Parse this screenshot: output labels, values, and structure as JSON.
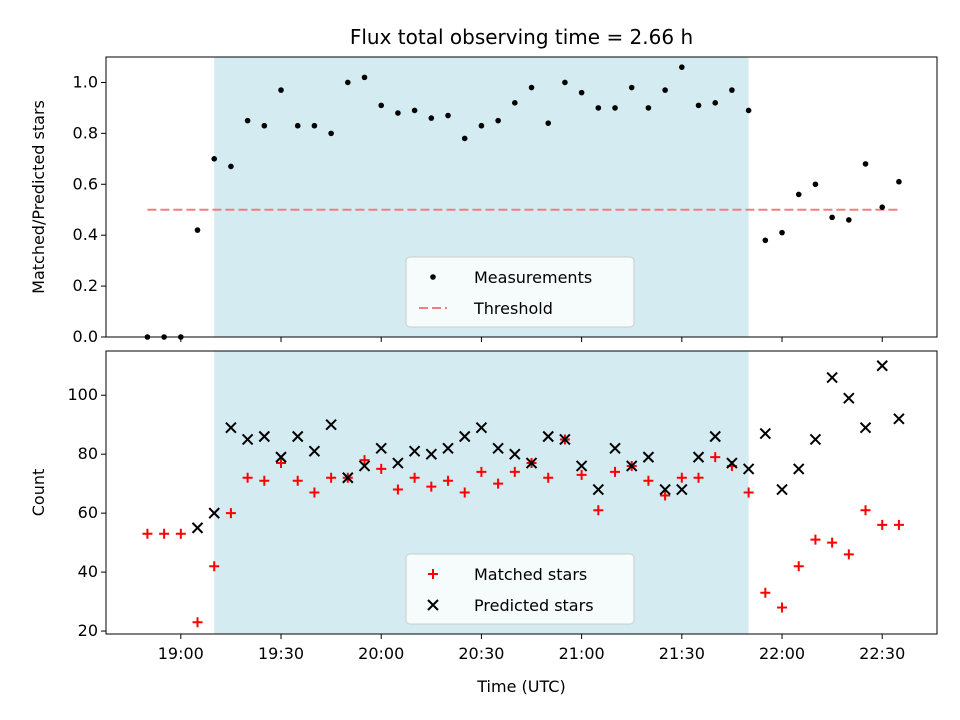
{
  "colors": {
    "shade": "#d3ebf1",
    "measurement": "#000000",
    "threshold": "#f08080",
    "matched": "#ff0000",
    "predicted": "#000000"
  },
  "chart_data": [
    {
      "type": "scatter",
      "title": "Flux total observing time = 2.66 h",
      "xlabel": "",
      "ylabel": "Matched/Predicted stars",
      "ylim": [
        0,
        1.1
      ],
      "yticks": [
        "0.0",
        "0.2",
        "0.4",
        "0.6",
        "0.8",
        "1.0"
      ],
      "x_unit": "minutes since 00:00 UTC",
      "shaded_region": [
        "19:10",
        "21:50"
      ],
      "legend": {
        "placement": "lower-center",
        "entries": [
          "Measurements",
          "Threshold"
        ]
      },
      "threshold": {
        "name": "Threshold",
        "value": 0.5,
        "x_range": [
          "18:50",
          "22:35"
        ]
      },
      "series": [
        {
          "name": "Measurements",
          "marker": "dot",
          "x": [
            "18:50",
            "18:55",
            "19:00",
            "19:05",
            "19:10",
            "19:15",
            "19:20",
            "19:25",
            "19:30",
            "19:35",
            "19:40",
            "19:45",
            "19:50",
            "19:55",
            "20:00",
            "20:05",
            "20:10",
            "20:15",
            "20:20",
            "20:25",
            "20:30",
            "20:35",
            "20:40",
            "20:45",
            "20:50",
            "20:55",
            "21:00",
            "21:05",
            "21:10",
            "21:15",
            "21:20",
            "21:25",
            "21:30",
            "21:35",
            "21:40",
            "21:45",
            "21:50",
            "21:55",
            "22:00",
            "22:05",
            "22:10",
            "22:15",
            "22:20",
            "22:25",
            "22:30",
            "22:35"
          ],
          "values": [
            0.0,
            0.0,
            0.0,
            0.42,
            0.7,
            0.67,
            0.85,
            0.83,
            0.97,
            0.83,
            0.83,
            0.8,
            1.0,
            1.02,
            0.91,
            0.88,
            0.89,
            0.86,
            0.87,
            0.78,
            0.83,
            0.85,
            0.92,
            0.98,
            0.84,
            1.0,
            0.96,
            0.9,
            0.9,
            0.98,
            0.9,
            0.97,
            1.06,
            0.91,
            0.92,
            0.97,
            0.89,
            0.38,
            0.41,
            0.56,
            0.6,
            0.47,
            0.46,
            0.68,
            0.51,
            0.61
          ]
        }
      ]
    },
    {
      "type": "scatter",
      "title": "",
      "xlabel": "Time (UTC)",
      "ylabel": "Count",
      "ylim": [
        19,
        115
      ],
      "yticks": [
        "20",
        "40",
        "60",
        "80",
        "100"
      ],
      "xticks": [
        "19:00",
        "19:30",
        "20:00",
        "20:30",
        "21:00",
        "21:30",
        "22:00",
        "22:30"
      ],
      "shaded_region": [
        "19:10",
        "21:50"
      ],
      "legend": {
        "placement": "lower-center",
        "entries": [
          "Matched stars",
          "Predicted stars"
        ]
      },
      "series": [
        {
          "name": "Matched stars",
          "marker": "plus",
          "x": [
            "18:50",
            "18:55",
            "19:00",
            "19:05",
            "19:10",
            "19:15",
            "19:20",
            "19:25",
            "19:30",
            "19:35",
            "19:40",
            "19:45",
            "19:50",
            "19:55",
            "20:00",
            "20:05",
            "20:10",
            "20:15",
            "20:20",
            "20:25",
            "20:30",
            "20:35",
            "20:40",
            "20:45",
            "20:50",
            "20:55",
            "21:00",
            "21:05",
            "21:10",
            "21:15",
            "21:20",
            "21:25",
            "21:30",
            "21:35",
            "21:40",
            "21:45",
            "21:50",
            "21:55",
            "22:00",
            "22:05",
            "22:10",
            "22:15",
            "22:20",
            "22:25",
            "22:30",
            "22:35"
          ],
          "values": [
            53,
            53,
            53,
            23,
            42,
            60,
            72,
            71,
            77,
            71,
            67,
            72,
            72,
            78,
            75,
            68,
            72,
            69,
            71,
            67,
            74,
            70,
            74,
            77,
            72,
            85,
            73,
            61,
            74,
            76,
            71,
            66,
            72,
            72,
            79,
            76,
            67,
            33,
            28,
            42,
            51,
            50,
            46,
            61,
            56,
            56
          ]
        },
        {
          "name": "Predicted stars",
          "marker": "x",
          "x": [
            "19:05",
            "19:10",
            "19:15",
            "19:20",
            "19:25",
            "19:30",
            "19:35",
            "19:40",
            "19:45",
            "19:50",
            "19:55",
            "20:00",
            "20:05",
            "20:10",
            "20:15",
            "20:20",
            "20:25",
            "20:30",
            "20:35",
            "20:40",
            "20:45",
            "20:50",
            "20:55",
            "21:00",
            "21:05",
            "21:10",
            "21:15",
            "21:20",
            "21:25",
            "21:30",
            "21:35",
            "21:40",
            "21:45",
            "21:50",
            "21:55",
            "22:00",
            "22:05",
            "22:10",
            "22:15",
            "22:20",
            "22:25",
            "22:30",
            "22:35"
          ],
          "values": [
            55,
            60,
            89,
            85,
            86,
            79,
            86,
            81,
            90,
            72,
            76,
            82,
            77,
            81,
            80,
            82,
            86,
            89,
            82,
            80,
            77,
            86,
            85,
            76,
            68,
            82,
            76,
            79,
            68,
            68,
            79,
            86,
            77,
            75,
            87,
            68,
            75,
            85,
            106,
            99,
            89,
            110,
            92
          ]
        }
      ]
    }
  ]
}
